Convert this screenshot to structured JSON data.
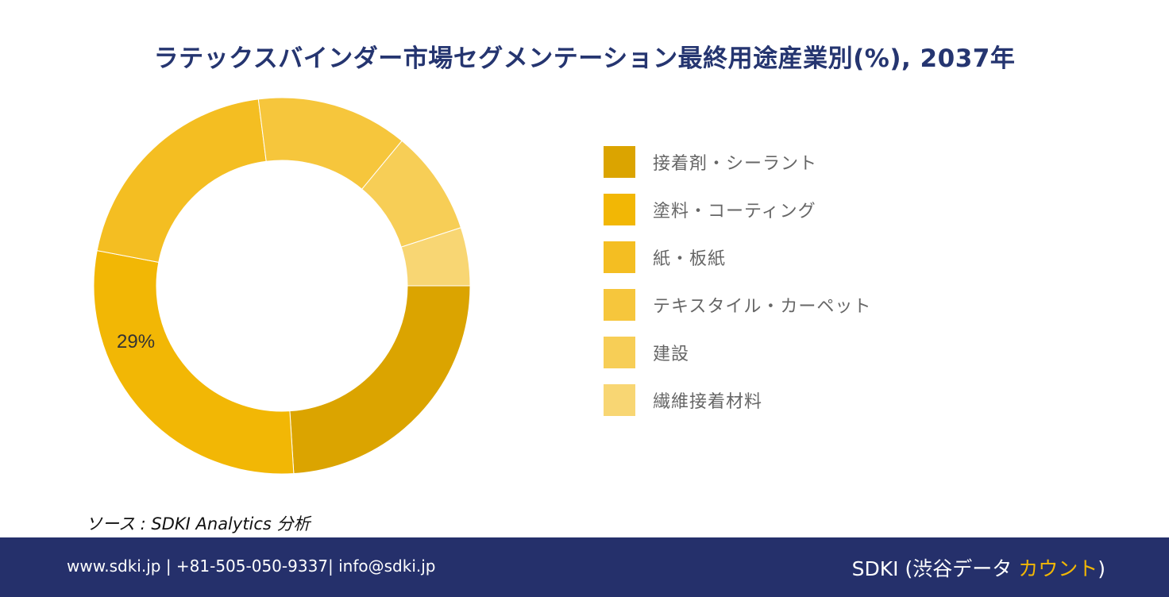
{
  "title": "ラテックスバインダー市場セグメンテーション最終用途産業別(%), 2037年",
  "chart_data": {
    "type": "pie",
    "style": "donut",
    "categories": [
      "接着剤・シーラント",
      "塗料・コーティング",
      "紙・板紙",
      "テキスタイル・カーペット",
      "建設",
      "繊維接着材料"
    ],
    "values": [
      24,
      29,
      20,
      13,
      9,
      5
    ],
    "colors": [
      "#dba400",
      "#f2b705",
      "#f4be22",
      "#f6c63c",
      "#f7ce56",
      "#f8d673"
    ],
    "data_labels": [
      {
        "category": "塗料・コーティング",
        "text": "29%"
      }
    ],
    "legend_position": "right"
  },
  "source": "ソース : SDKI Analytics 分析",
  "footer": {
    "contact": "www.sdki.jp | +81-505-050-9337| info@sdki.jp",
    "brand_main": "SDKI (渋谷データ ",
    "brand_accent": "カウント",
    "brand_end": ")"
  }
}
